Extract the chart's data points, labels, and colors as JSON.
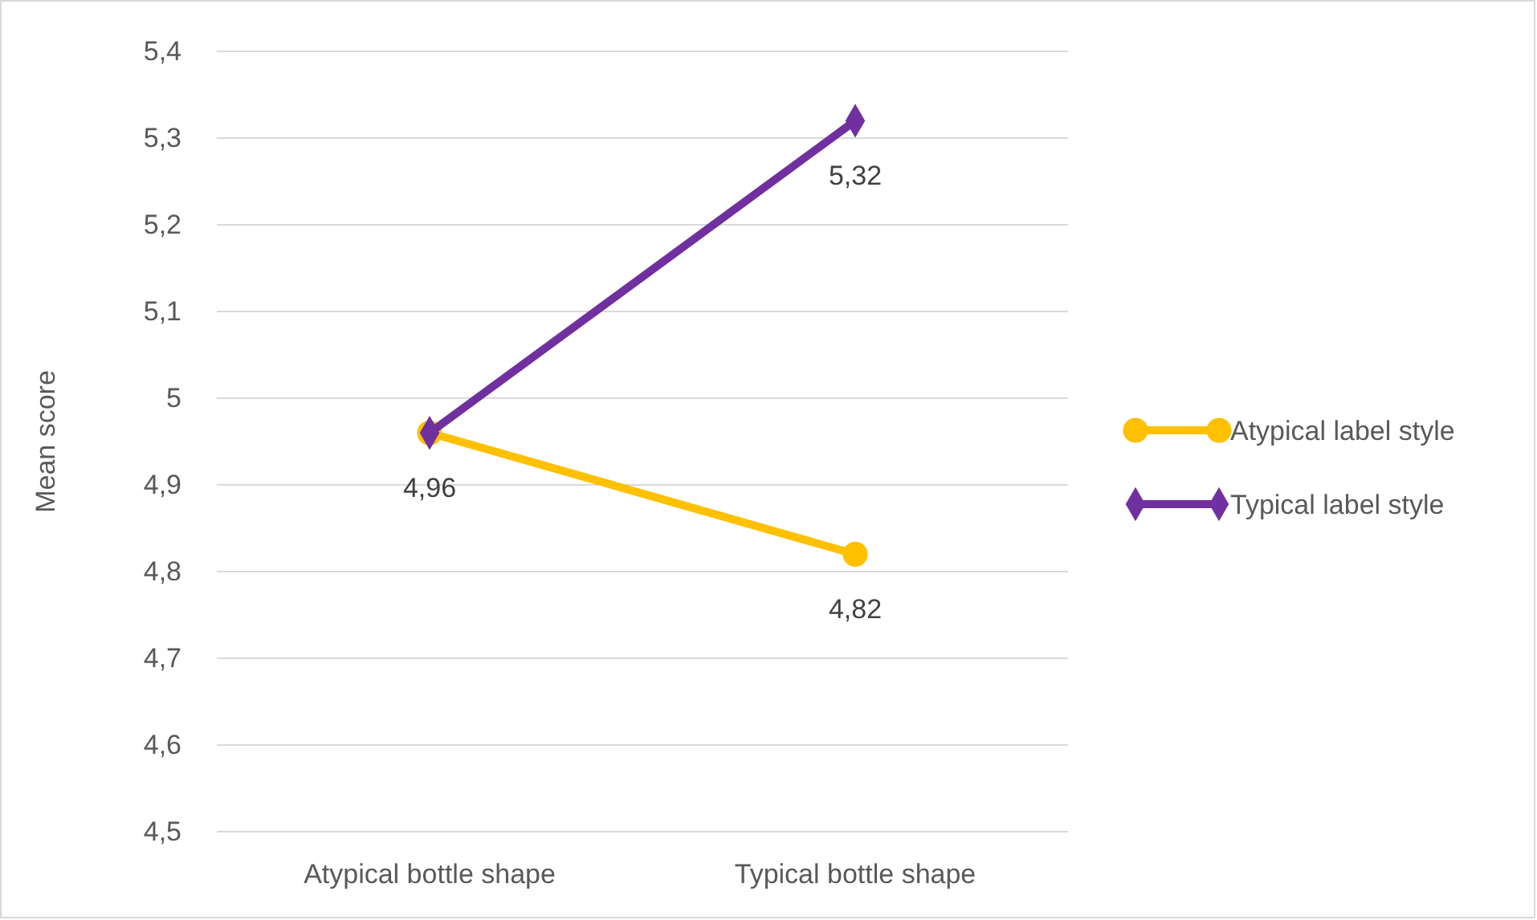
{
  "chart_data": {
    "type": "line",
    "ylabel": "Mean score",
    "categories": [
      "Atypical bottle shape",
      "Typical bottle shape"
    ],
    "series": [
      {
        "name": "Atypical label style",
        "color": "#ffc000",
        "marker": "circle",
        "values": [
          4.96,
          4.82
        ],
        "value_labels": [
          "4,96",
          "4,82"
        ]
      },
      {
        "name": "Typical label style",
        "color": "#7030a0",
        "marker": "diamond",
        "values": [
          4.96,
          5.32
        ],
        "value_labels": [
          null,
          "5,32"
        ]
      }
    ],
    "ylim": [
      4.5,
      5.4
    ],
    "yticks": [
      {
        "value": 4.5,
        "label": "4,5"
      },
      {
        "value": 4.6,
        "label": "4,6"
      },
      {
        "value": 4.7,
        "label": "4,7"
      },
      {
        "value": 4.8,
        "label": "4,8"
      },
      {
        "value": 4.9,
        "label": "4,9"
      },
      5,
      {
        "value": 5.1,
        "label": "5,1"
      },
      {
        "value": 5.2,
        "label": "5,2"
      },
      {
        "value": 5.3,
        "label": "5,3"
      },
      {
        "value": 5.4,
        "label": "5,4"
      }
    ],
    "grid": "y",
    "legend": "right",
    "line_style": "solid"
  }
}
